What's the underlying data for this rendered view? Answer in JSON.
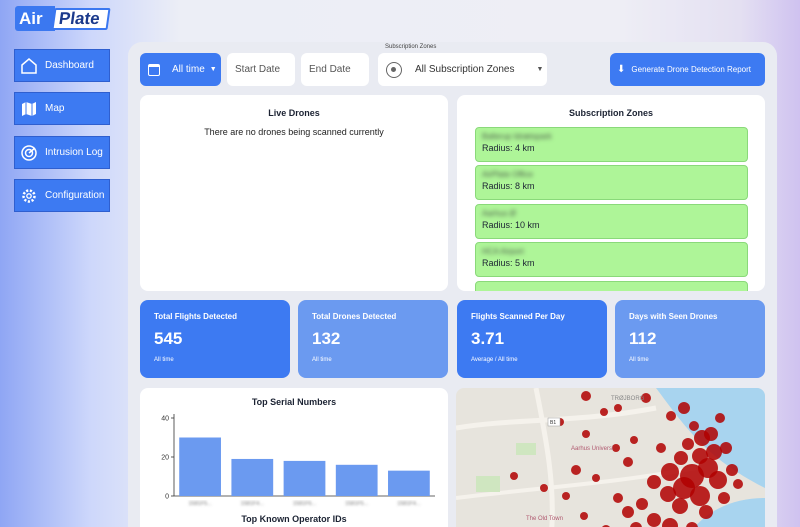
{
  "logo": {
    "part1": "Air",
    "part2": "Plate"
  },
  "sidebar": {
    "items": [
      {
        "label": "Dashboard",
        "icon": "home-icon"
      },
      {
        "label": "Map",
        "icon": "map-icon"
      },
      {
        "label": "Intrusion Log",
        "icon": "radar-icon"
      },
      {
        "label": "Configuration",
        "icon": "gear-icon"
      }
    ]
  },
  "toolbar": {
    "time_range": "All time",
    "start_placeholder": "Start Date",
    "end_placeholder": "End Date",
    "zones_caption": "Subscription Zones",
    "zones_selected": "All Subscription Zones",
    "report_label": "Generate Drone Detection Report"
  },
  "live_drones": {
    "title": "Live Drones",
    "empty_text": "There are no drones being scanned currently"
  },
  "subscription_zones": {
    "title": "Subscription Zones",
    "items": [
      {
        "name": "Ballerup Idrætspark",
        "radius": "Radius: 4 km"
      },
      {
        "name": "AirPlate Office",
        "radius": "Radius: 8 km"
      },
      {
        "name": "Aarhus Ø",
        "radius": "Radius: 10 km"
      },
      {
        "name": "HCA Airport",
        "radius": "Radius: 5 km"
      }
    ]
  },
  "stats": [
    {
      "label": "Total Flights Detected",
      "value": "545",
      "sub": "All time",
      "color": "#3d7af2"
    },
    {
      "label": "Total Drones Detected",
      "value": "132",
      "sub": "All time",
      "color": "#6b9af0"
    },
    {
      "label": "Flights Scanned Per Day",
      "value": "3.71",
      "sub": "Average / All time",
      "color": "#3d7af2"
    },
    {
      "label": "Days with Seen Drones",
      "value": "112",
      "sub": "All time",
      "color": "#6b9af0"
    }
  ],
  "top_serials": {
    "title": "Top Serial Numbers",
    "next_title": "Top Known Operator IDs"
  },
  "chart_data": {
    "type": "bar",
    "title": "Top Serial Numbers",
    "categories": [
      "1581F5...",
      "1581F4...",
      "1581F6...",
      "1581F5...",
      "1581F4..."
    ],
    "values": [
      30,
      19,
      18,
      16,
      13
    ],
    "ylim": [
      0,
      40
    ],
    "yticks": [
      0,
      20,
      40
    ],
    "bar_color": "#6b9af0"
  },
  "map": {
    "labels": {
      "university": "Aarhus Universi",
      "old_town": "The Old Town",
      "road": "B1",
      "district": "TRØJBORG"
    }
  },
  "colors": {
    "accent": "#3d7af2",
    "accent_light": "#6b9af0",
    "zone_green": "#aef598",
    "heat_red": "#b00000"
  }
}
